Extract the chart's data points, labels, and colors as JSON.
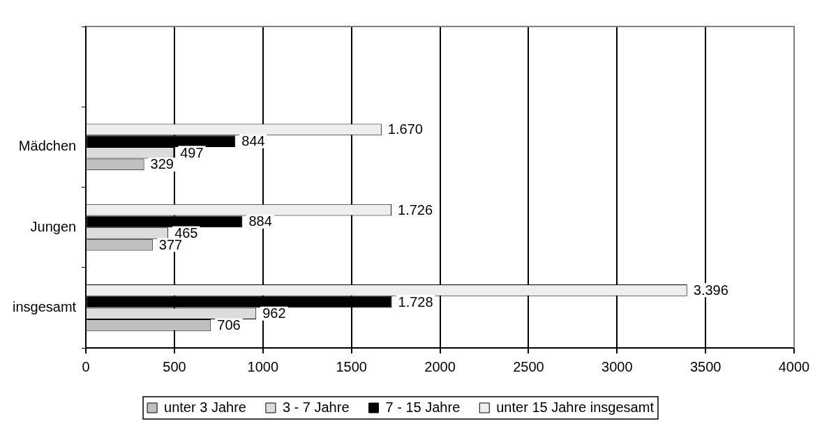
{
  "chart_data": {
    "type": "bar",
    "orientation": "horizontal",
    "categories": [
      null,
      "Mädchen",
      "Jungen",
      "insgesamt"
    ],
    "series": [
      {
        "name": "unter 3 Jahre",
        "color": "#c0c0c0",
        "values": [
          null,
          329,
          377,
          706
        ],
        "value_labels": [
          null,
          "329",
          "377",
          "706"
        ]
      },
      {
        "name": "3 - 7 Jahre",
        "color": "#dcdcdc",
        "values": [
          null,
          497,
          465,
          962
        ],
        "value_labels": [
          null,
          "497",
          "465",
          "962"
        ]
      },
      {
        "name": "7 - 15 Jahre",
        "color": "#000000",
        "values": [
          null,
          844,
          884,
          1728
        ],
        "value_labels": [
          null,
          "844",
          "884",
          "1.728"
        ]
      },
      {
        "name": "unter 15 Jahre insgesamt",
        "color": "#eeeeee",
        "values": [
          null,
          1670,
          1726,
          3396
        ],
        "value_labels": [
          null,
          "1.670",
          "1.726",
          "3.396"
        ]
      }
    ],
    "xlim": [
      0,
      4000
    ],
    "xticks": [
      0,
      500,
      1000,
      1500,
      2000,
      2500,
      3000,
      3500,
      4000
    ],
    "grid": "x",
    "legend": "bottom"
  }
}
